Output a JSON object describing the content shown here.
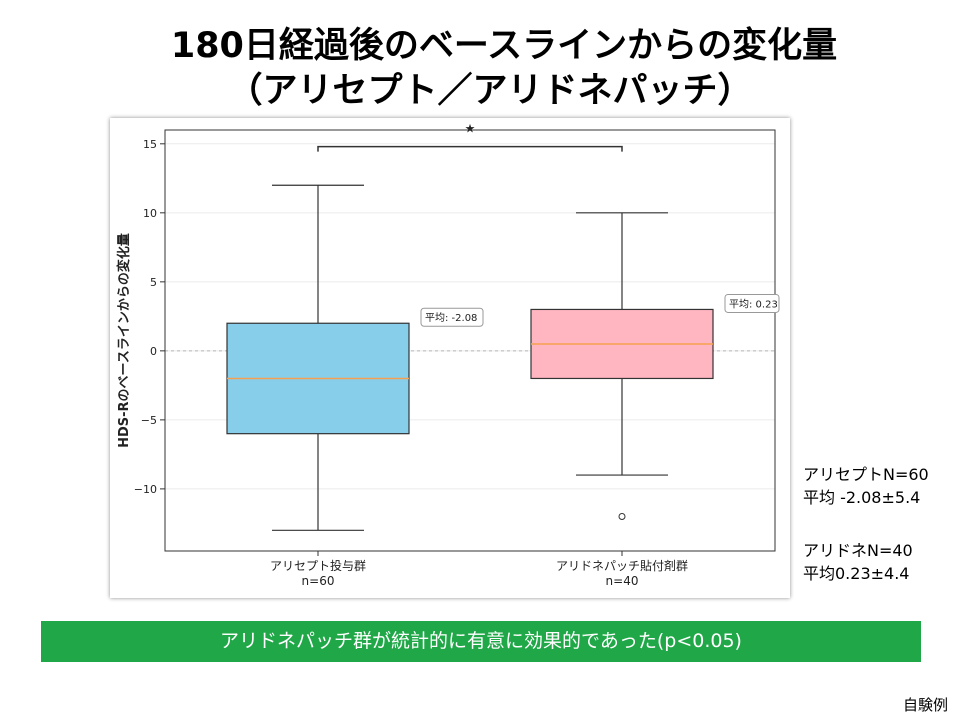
{
  "title": {
    "line1": "180日経過後のベースラインからの変化量",
    "line2": "（アリセプト／アリドネパッチ）"
  },
  "stats_panel": {
    "group_a": {
      "line1": "アリセプトN=60",
      "line2": "平均 -2.08±5.4"
    },
    "group_b": {
      "line1": "アリドネN=40",
      "line2": "平均0.23±4.4"
    }
  },
  "conclusion": "アリドネパッチ群が統計的に有意に効果的であった(p<0.05)",
  "source_note": "自験例",
  "chart_data": {
    "type": "box",
    "ylabel": "HDS-Rのベースラインからの変化量",
    "xlabel": "",
    "ylim": [
      -14.5,
      16
    ],
    "yticks": [
      -10,
      -5,
      0,
      5,
      10,
      15
    ],
    "ytick_labels": [
      "−10",
      "−5",
      "0",
      "5",
      "10",
      "15"
    ],
    "grid": true,
    "reference_line": 0,
    "significance_marker": "★",
    "groups": [
      {
        "name": "アリセプト投与群",
        "n_label": "n=60",
        "whisker_low": -13,
        "q1": -6,
        "median": -2,
        "q3": 2,
        "whisker_high": 12,
        "outliers": [],
        "mean_label": "平均: -2.08",
        "color": "#87ceeb"
      },
      {
        "name": "アリドネパッチ貼付剤群",
        "n_label": "n=40",
        "whisker_low": -9,
        "q1": -2,
        "median": 0.5,
        "q3": 3,
        "whisker_high": 10,
        "outliers": [
          -12
        ],
        "mean_label": "平均: 0.23",
        "color": "#ffb6c1"
      }
    ],
    "median_color": "#f5a050",
    "line_color": "#333333"
  }
}
